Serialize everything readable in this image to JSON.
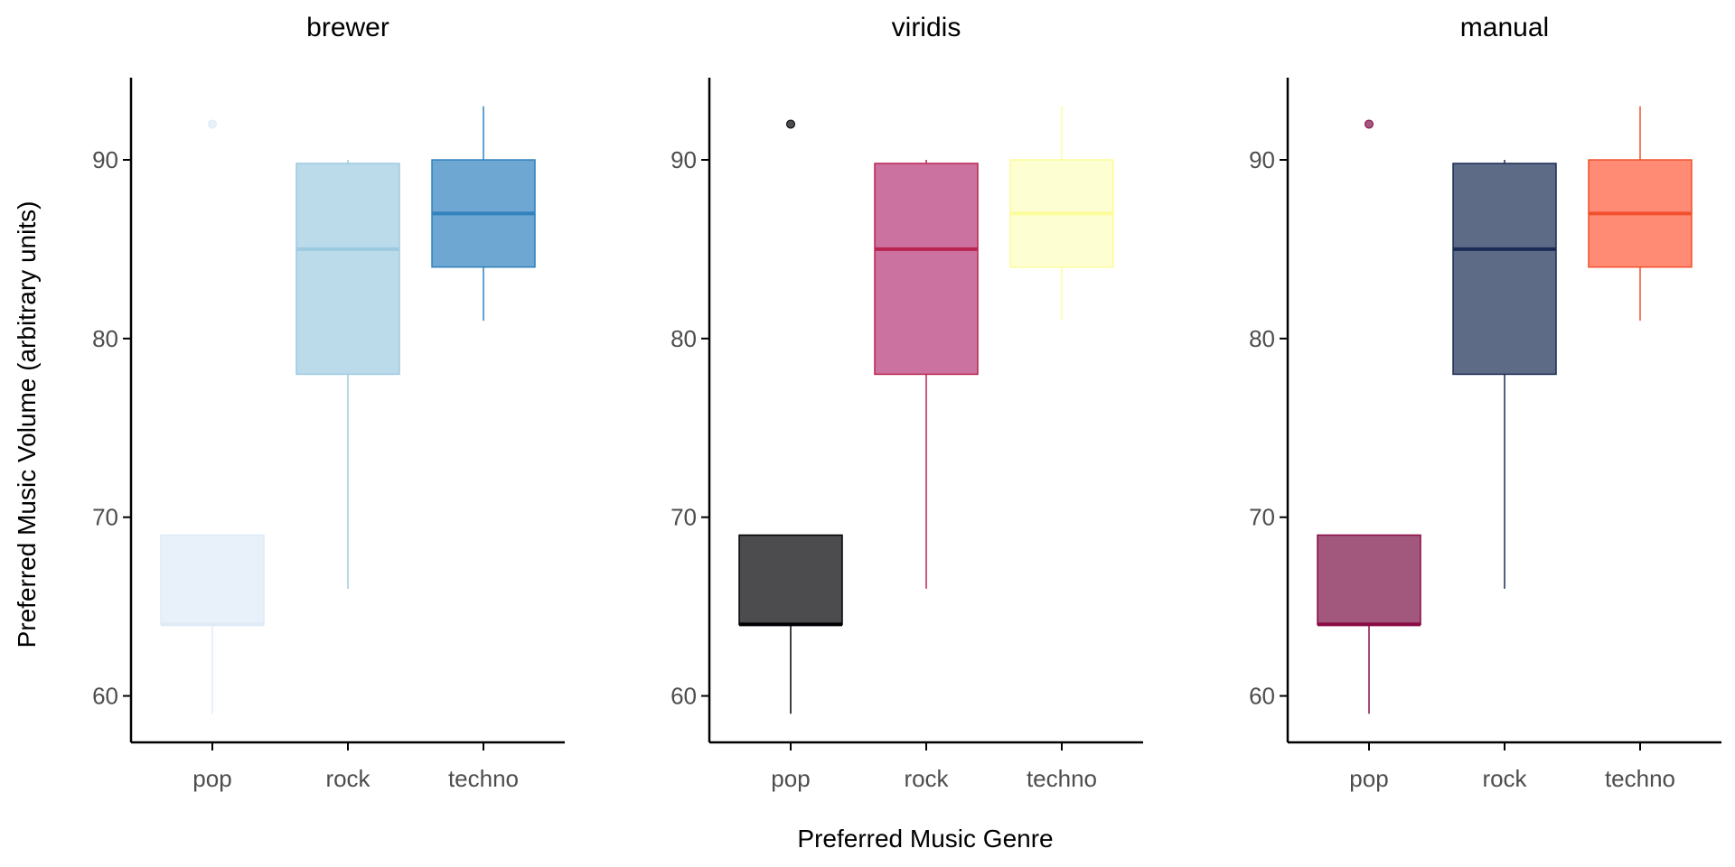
{
  "chart_data": {
    "type": "boxplot",
    "facet_layout": "1 row x 3 columns, shared y-axis range",
    "xlabel": "Preferred Music Genre",
    "ylabel": "Preferred Music Volume (arbitrary units)",
    "categories": [
      "pop",
      "rock",
      "techno"
    ],
    "yticks": [
      60,
      70,
      80,
      90
    ],
    "ylim": [
      57.4,
      94.6
    ],
    "grid": false,
    "legend": "none",
    "panels": [
      {
        "title": "brewer",
        "boxes": [
          {
            "category": "pop",
            "whisker_low": 59,
            "q1": 64,
            "median": 64,
            "q3": 69,
            "whisker_high": 69,
            "outliers": [
              92
            ],
            "fill": "#deebf7",
            "line": "#deebf7"
          },
          {
            "category": "rock",
            "whisker_low": 66,
            "q1": 78,
            "median": 85,
            "q3": 89.8,
            "whisker_high": 90,
            "outliers": [],
            "fill": "#9ecae1",
            "line": "#9ecae1"
          },
          {
            "category": "techno",
            "whisker_low": 81,
            "q1": 84,
            "median": 87,
            "q3": 90,
            "whisker_high": 93,
            "outliers": [],
            "fill": "#3182bd",
            "line": "#3182bd"
          }
        ]
      },
      {
        "title": "viridis",
        "boxes": [
          {
            "category": "pop",
            "whisker_low": 59,
            "q1": 64,
            "median": 64,
            "q3": 69,
            "whisker_high": 69,
            "outliers": [
              92
            ],
            "fill": "#000004",
            "line": "#000004"
          },
          {
            "category": "rock",
            "whisker_low": 66,
            "q1": 78,
            "median": 85,
            "q3": 89.8,
            "whisker_high": 90,
            "outliers": [],
            "fill": "#b63679",
            "line": "#b8254f"
          },
          {
            "category": "techno",
            "whisker_low": 81,
            "q1": 84,
            "median": 87,
            "q3": 90,
            "whisker_high": 93,
            "outliers": [],
            "fill": "#fcfdbf",
            "line": "#fcfc9a"
          }
        ]
      },
      {
        "title": "manual",
        "boxes": [
          {
            "category": "pop",
            "whisker_low": 59,
            "q1": 64,
            "median": 64,
            "q3": 69,
            "whisker_high": 69,
            "outliers": [
              92
            ],
            "fill": "#7a0f45",
            "line": "#8a0b45"
          },
          {
            "category": "rock",
            "whisker_low": 66,
            "q1": 78,
            "median": 85,
            "q3": 89.8,
            "whisker_high": 90,
            "outliers": [],
            "fill": "#1a2c53",
            "line": "#1a2c53"
          },
          {
            "category": "techno",
            "whisker_low": 81,
            "q1": 84,
            "median": 87,
            "q3": 90,
            "whisker_high": 93,
            "outliers": [],
            "fill": "#ff5a3a",
            "line": "#f0502e"
          }
        ]
      }
    ],
    "box_fill_opacity": 0.7
  }
}
